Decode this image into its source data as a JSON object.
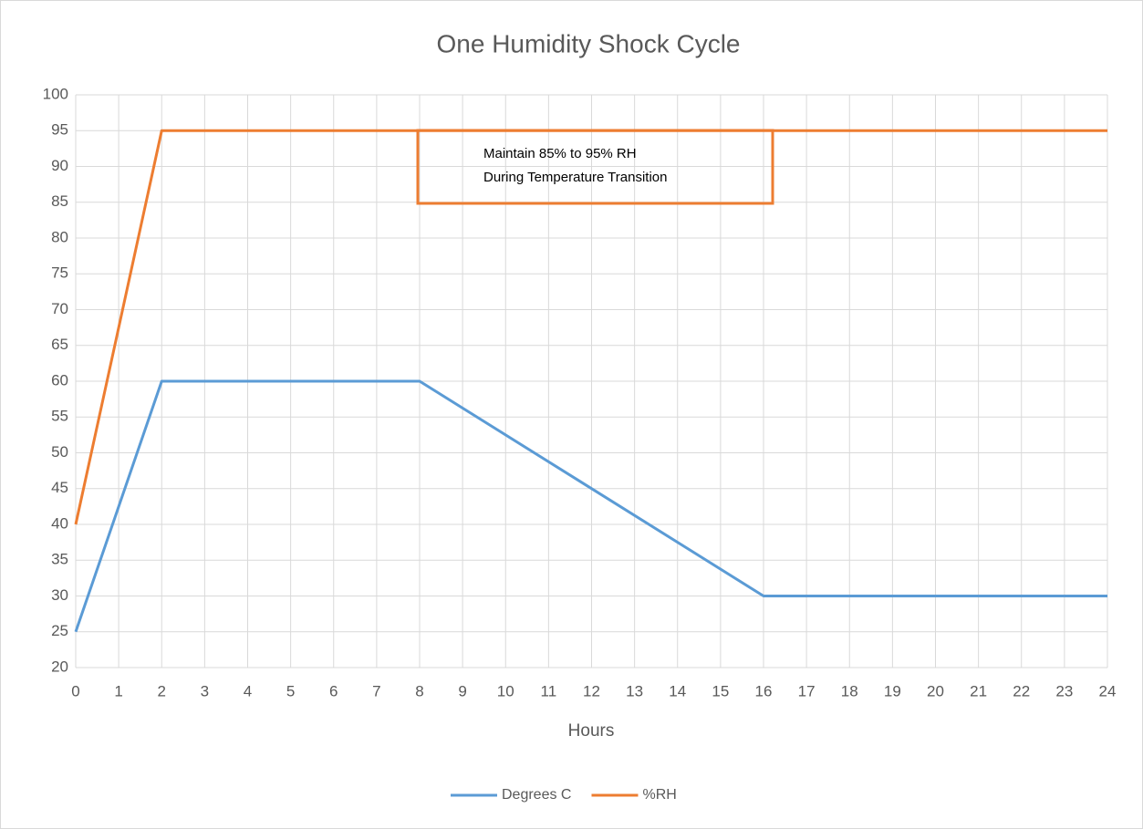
{
  "chart_data": {
    "type": "line",
    "title": "One Humidity Shock Cycle",
    "x_label": "Hours",
    "series": [
      {
        "name": "Degrees C",
        "color": "#5b9bd5",
        "x": [
          0,
          2,
          8,
          16,
          24
        ],
        "values": [
          25,
          60,
          60,
          30,
          30
        ]
      },
      {
        "name": "%RH",
        "color": "#ed7d31",
        "x": [
          0,
          2,
          24
        ],
        "values": [
          40,
          95,
          95
        ]
      }
    ],
    "xlim": [
      0,
      24
    ],
    "xticks": [
      0,
      1,
      2,
      3,
      4,
      5,
      6,
      7,
      8,
      9,
      10,
      11,
      12,
      13,
      14,
      15,
      16,
      17,
      18,
      19,
      20,
      21,
      22,
      23,
      24
    ],
    "ylim": [
      20,
      100
    ],
    "yticks": [
      20,
      25,
      30,
      35,
      40,
      45,
      50,
      55,
      60,
      65,
      70,
      75,
      80,
      85,
      90,
      95,
      100
    ],
    "grid": true,
    "legend": "bottom",
    "annotation": [
      "Maintain 85% to 95% RH",
      "During Temperature Transition"
    ]
  }
}
